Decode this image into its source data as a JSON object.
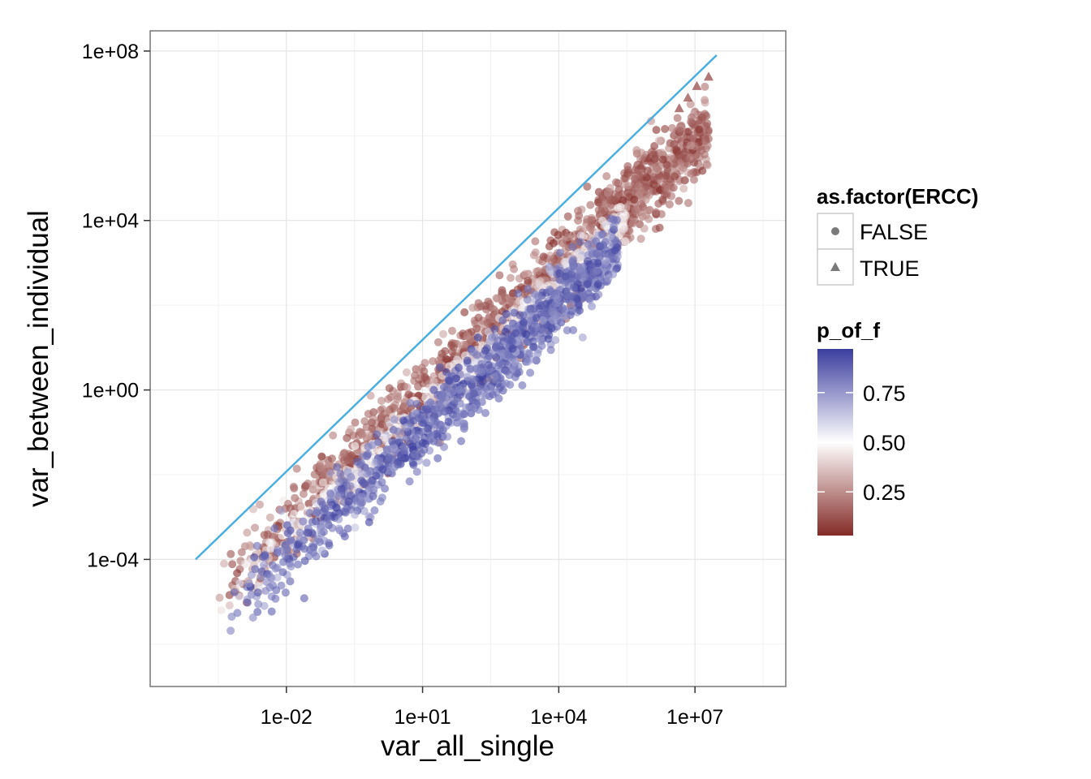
{
  "chart_data": {
    "type": "scatter",
    "title": "",
    "xlabel": "var_all_single",
    "ylabel": "var_between_individual",
    "x_scale": "log10",
    "y_scale": "log10",
    "xlim": [
      1e-05,
      1000000000.0
    ],
    "ylim": [
      1e-07,
      300000000.0
    ],
    "x_ticks": [
      {
        "value": 0.01,
        "label": "1e-02"
      },
      {
        "value": 10,
        "label": "1e+01"
      },
      {
        "value": 10000,
        "label": "1e+04"
      },
      {
        "value": 10000000,
        "label": "1e+07"
      }
    ],
    "y_ticks": [
      {
        "value": 0.0001,
        "label": "1e-04"
      },
      {
        "value": 1,
        "label": "1e+00"
      },
      {
        "value": 10000,
        "label": "1e+04"
      },
      {
        "value": 100000000,
        "label": "1e+08"
      }
    ],
    "grid": true,
    "reference_line": {
      "x": [
        0.0001,
        30000000
      ],
      "y": [
        0.0001,
        80000000
      ],
      "color": "#4aaee0"
    },
    "series": [
      {
        "marker": "triangle",
        "points": [
          {
            "x": 20000000,
            "y": 25000000,
            "p": 0.05
          },
          {
            "x": 11000000,
            "y": 15000000,
            "p": 0.05
          },
          {
            "x": 7000000,
            "y": 8000000,
            "p": 0.06
          },
          {
            "x": 4500000,
            "y": 4500000,
            "p": 0.05
          },
          {
            "x": 950000,
            "y": 300000,
            "p": 0.04
          },
          {
            "x": 650000,
            "y": 200000,
            "p": 0.08
          },
          {
            "x": 450000,
            "y": 160000,
            "p": 0.1
          }
        ]
      }
    ],
    "point_clouds": [
      {
        "marker": "circle",
        "x_range": [
          0.0003,
          20000000
        ],
        "slope": 1.0,
        "intercept": -1.15,
        "spread": 0.45,
        "p_mid": 0.15,
        "count": 1600
      },
      {
        "marker": "circle",
        "x_range": [
          0.0003,
          300000
        ],
        "slope": 1.0,
        "intercept": -1.55,
        "spread": 0.25,
        "p_mid": 0.5,
        "count": 700
      },
      {
        "marker": "circle",
        "x_range": [
          0.0004,
          200000
        ],
        "slope": 1.0,
        "intercept": -1.95,
        "spread": 0.4,
        "p_mid": 0.88,
        "count": 1100
      }
    ],
    "legend_position": "right",
    "legends": [
      {
        "title": "as.factor(ERCC)",
        "type": "shape",
        "entries": [
          {
            "label": "FALSE",
            "shape": "circle"
          },
          {
            "label": "TRUE",
            "shape": "triangle"
          }
        ]
      },
      {
        "title": "p_of_f",
        "type": "colorbar",
        "range": [
          0.03,
          0.97
        ],
        "breaks": [
          {
            "value": 0.75,
            "label": "0.75"
          },
          {
            "value": 0.5,
            "label": "0.50"
          },
          {
            "value": 0.25,
            "label": "0.25"
          }
        ],
        "low_color": "#832a26",
        "mid_color": "#ffffff",
        "high_color": "#3b3d9e"
      }
    ]
  }
}
